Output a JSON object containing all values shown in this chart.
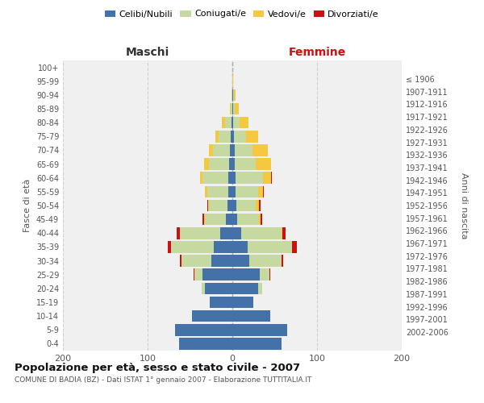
{
  "age_groups": [
    "0-4",
    "5-9",
    "10-14",
    "15-19",
    "20-24",
    "25-29",
    "30-34",
    "35-39",
    "40-44",
    "45-49",
    "50-54",
    "55-59",
    "60-64",
    "65-69",
    "70-74",
    "75-79",
    "80-84",
    "85-89",
    "90-94",
    "95-99",
    "100+"
  ],
  "birth_years": [
    "2002-2006",
    "1997-2001",
    "1992-1996",
    "1987-1991",
    "1982-1986",
    "1977-1981",
    "1972-1976",
    "1967-1971",
    "1962-1966",
    "1957-1961",
    "1952-1956",
    "1947-1951",
    "1942-1946",
    "1937-1941",
    "1932-1936",
    "1927-1931",
    "1922-1926",
    "1917-1921",
    "1912-1916",
    "1907-1911",
    "≤ 1906"
  ],
  "maschi": {
    "celibi": [
      63,
      68,
      48,
      27,
      32,
      35,
      25,
      22,
      14,
      8,
      6,
      5,
      5,
      4,
      3,
      2,
      1,
      0,
      0,
      0,
      0
    ],
    "coniugati": [
      0,
      0,
      0,
      0,
      4,
      10,
      35,
      50,
      48,
      24,
      22,
      25,
      30,
      24,
      20,
      14,
      8,
      2,
      1,
      0,
      0
    ],
    "vedovi": [
      0,
      0,
      0,
      0,
      0,
      0,
      0,
      0,
      0,
      1,
      1,
      2,
      3,
      5,
      5,
      4,
      3,
      1,
      0,
      0,
      0
    ],
    "divorziati": [
      0,
      0,
      0,
      0,
      0,
      1,
      2,
      4,
      4,
      2,
      1,
      0,
      0,
      0,
      0,
      0,
      0,
      0,
      0,
      0,
      0
    ]
  },
  "femmine": {
    "nubili": [
      58,
      65,
      45,
      25,
      30,
      32,
      20,
      18,
      10,
      6,
      5,
      4,
      4,
      3,
      3,
      2,
      1,
      1,
      1,
      0,
      0
    ],
    "coniugate": [
      0,
      0,
      0,
      0,
      5,
      12,
      38,
      52,
      48,
      25,
      23,
      26,
      32,
      25,
      21,
      14,
      8,
      2,
      1,
      0,
      0
    ],
    "vedove": [
      0,
      0,
      0,
      0,
      0,
      0,
      0,
      0,
      1,
      2,
      3,
      6,
      10,
      18,
      18,
      14,
      10,
      5,
      2,
      1,
      0
    ],
    "divorziate": [
      0,
      0,
      0,
      0,
      0,
      1,
      2,
      6,
      4,
      2,
      2,
      1,
      1,
      0,
      0,
      0,
      0,
      0,
      0,
      0,
      0
    ]
  },
  "colors": {
    "celibi": "#4472a8",
    "coniugati": "#c5d9a0",
    "vedovi": "#f5c842",
    "divorziati": "#cc1111"
  },
  "xlim": 200,
  "title": "Popolazione per età, sesso e stato civile - 2007",
  "subtitle": "COMUNE DI BADIA (BZ) - Dati ISTAT 1° gennaio 2007 - Elaborazione TUTTITALIA.IT",
  "ylabel_left": "Fasce di età",
  "ylabel_right": "Anni di nascita",
  "xlabel_left": "Maschi",
  "xlabel_right": "Femmine",
  "bg_color": "#ffffff",
  "plot_bg": "#f0f0f0",
  "grid_color": "#d0d0d0"
}
